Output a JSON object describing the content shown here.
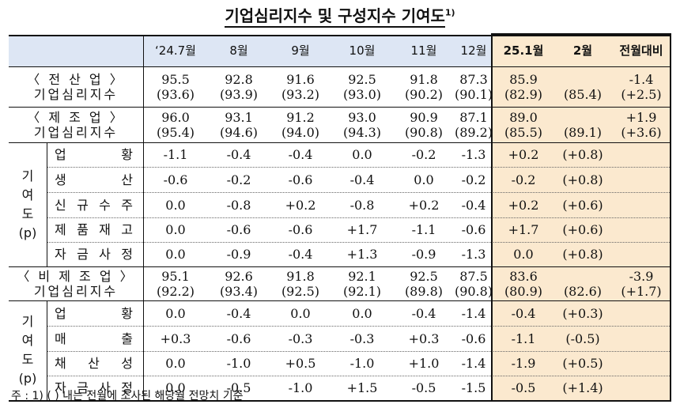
{
  "title": "기업심리지수 및 구성지수 기여도",
  "title_sup": "1)",
  "columns": [
    "‘24.7월",
    "8월",
    "9월",
    "10월",
    "11월",
    "12월",
    "25.1월",
    "2월",
    "전월대비"
  ],
  "rows": [
    {
      "label": "〈 전 산 업 〉",
      "label2": "기업심리지수",
      "values": [
        "95.5",
        "92.8",
        "91.6",
        "92.5",
        "91.8",
        "87.3",
        "85.9",
        "",
        "-1.4"
      ],
      "sub": [
        "(93.6)",
        "(93.9)",
        "(93.2)",
        "(93.0)",
        "(90.2)",
        "(90.1)",
        "(82.9)",
        "(85.4)",
        "(+2.5)"
      ]
    },
    {
      "label": "〈 제 조 업 〉",
      "label2": "기업심리지수",
      "values": [
        "96.0",
        "93.1",
        "91.2",
        "93.0",
        "90.9",
        "87.1",
        "89.0",
        "",
        "+1.9"
      ],
      "sub": [
        "(95.4)",
        "(94.6)",
        "(94.0)",
        "(94.3)",
        "(90.8)",
        "(89.2)",
        "(85.5)",
        "(89.1)",
        "(+3.6)"
      ]
    },
    {
      "group": "mfg",
      "label": "업황",
      "values": [
        "-1.1",
        "-0.4",
        "-0.4",
        "0.0",
        "-0.2",
        "-1.3",
        "+0.2",
        "(+0.8)",
        ""
      ]
    },
    {
      "group": "mfg",
      "label": "생산",
      "values": [
        "-0.6",
        "-0.2",
        "-0.6",
        "-0.4",
        "0.0",
        "-0.2",
        "-0.2",
        "(+0.8)",
        ""
      ]
    },
    {
      "group": "mfg",
      "label": "신규수주",
      "values": [
        "0.0",
        "-0.8",
        "+0.2",
        "-0.8",
        "+0.2",
        "-0.4",
        "+0.2",
        "(+0.6)",
        ""
      ]
    },
    {
      "group": "mfg",
      "label": "제품재고",
      "values": [
        "0.0",
        "-0.6",
        "-0.6",
        "+1.7",
        "-1.1",
        "-0.6",
        "+1.7",
        "(+0.6)",
        ""
      ]
    },
    {
      "group": "mfg",
      "label": "자금사정",
      "values": [
        "0.0",
        "-0.9",
        "-0.4",
        "+1.3",
        "-0.9",
        "-1.3",
        "0.0",
        "(+0.8)",
        ""
      ]
    },
    {
      "label": "〈 비 제 조 업 〉",
      "label2": "기업심리지수",
      "values": [
        "95.1",
        "92.6",
        "91.8",
        "92.1",
        "92.5",
        "87.5",
        "83.6",
        "",
        "-3.9"
      ],
      "sub": [
        "(92.2)",
        "(93.4)",
        "(92.5)",
        "(92.1)",
        "(89.8)",
        "(90.8)",
        "(80.9)",
        "(82.6)",
        "(+1.7)"
      ]
    },
    {
      "group": "nonmfg",
      "label": "업황",
      "values": [
        "0.0",
        "-0.4",
        "0.0",
        "0.0",
        "-0.4",
        "-1.4",
        "-0.4",
        "(+0.3)",
        ""
      ]
    },
    {
      "group": "nonmfg",
      "label": "매출",
      "values": [
        "+0.3",
        "-0.6",
        "-0.3",
        "-0.3",
        "+0.3",
        "-0.6",
        "-1.1",
        "(-0.5)",
        ""
      ]
    },
    {
      "group": "nonmfg",
      "label": "채산성",
      "values": [
        "0.0",
        "-1.0",
        "+0.5",
        "-1.0",
        "+1.0",
        "-1.4",
        "-1.9",
        "(+0.5)",
        ""
      ]
    },
    {
      "group": "nonmfg",
      "label": "자금사정",
      "values": [
        "0.0",
        "-0.5",
        "-1.0",
        "+1.5",
        "-0.5",
        "-1.5",
        "-0.5",
        "(+1.4)",
        ""
      ]
    }
  ],
  "group_label": [
    "기",
    "여",
    "도",
    "(p)"
  ],
  "footnote": "주 : 1) (     ) 내는 전월에 조사된 해당월 전망치 기준"
}
